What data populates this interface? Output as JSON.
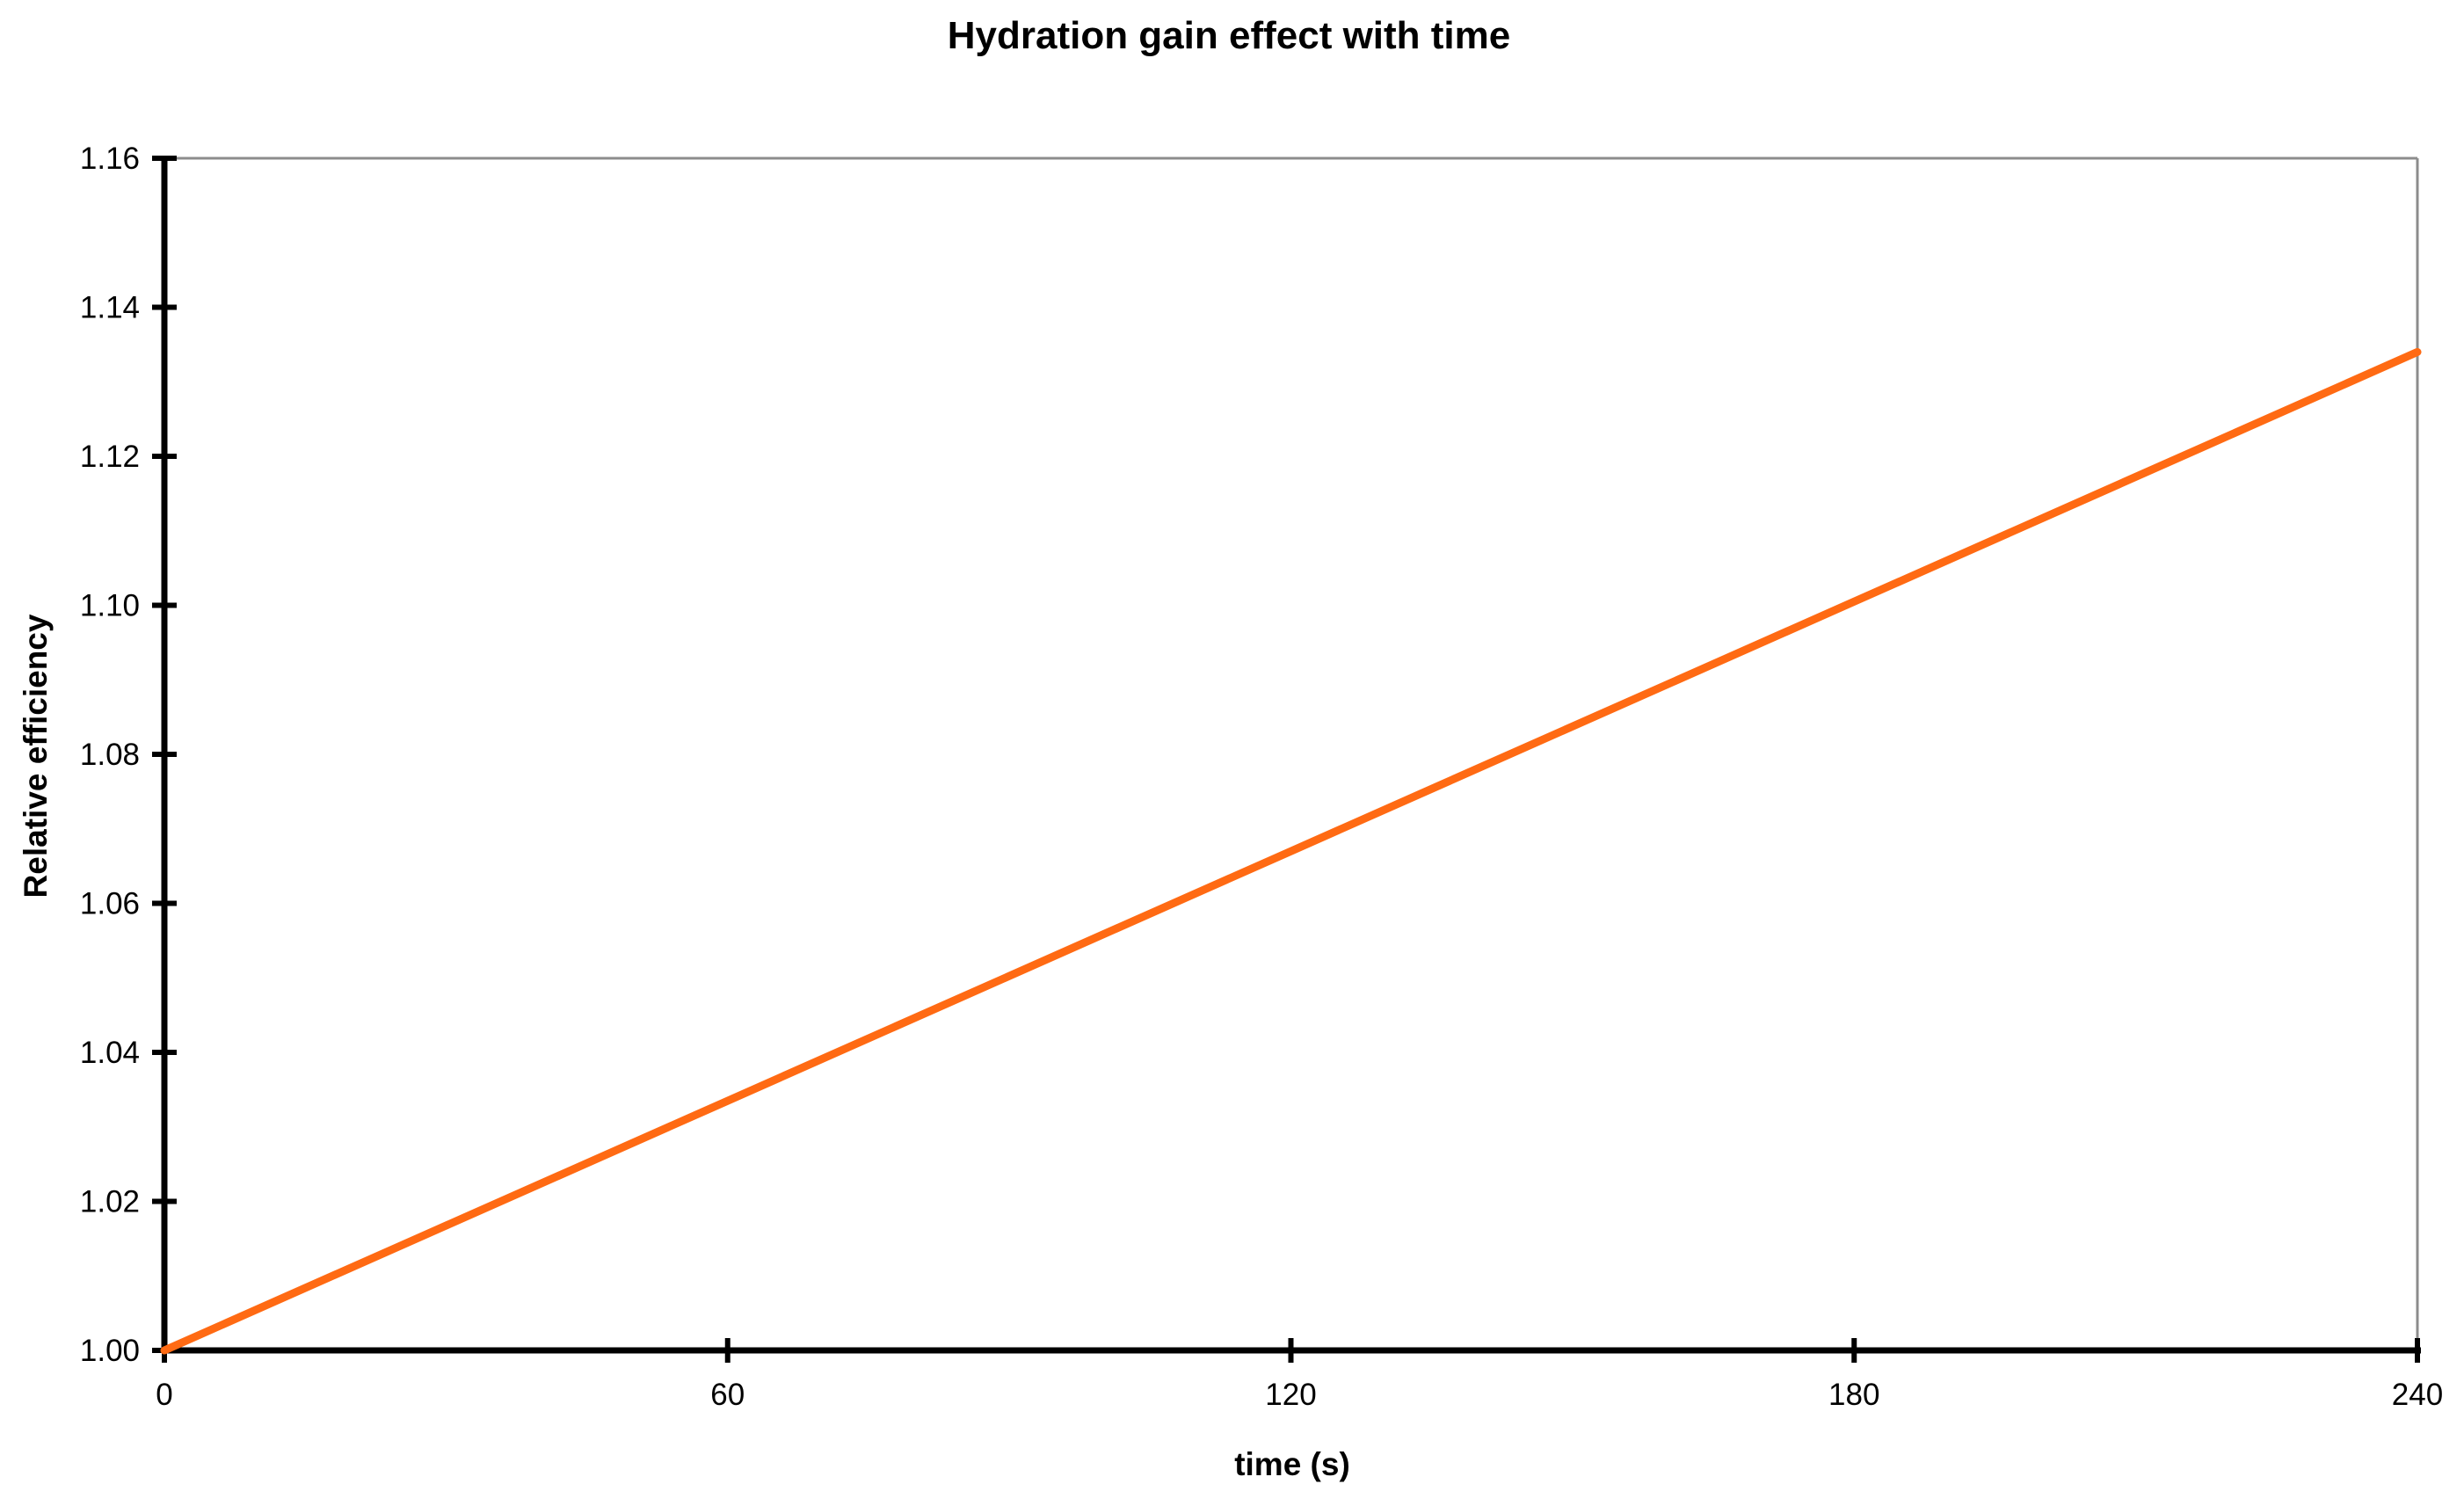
{
  "chart_data": {
    "type": "line",
    "title": "Hydration gain effect with time",
    "xlabel": "time (s)",
    "ylabel": "Relative efficiency",
    "xlim": [
      0,
      240
    ],
    "ylim": [
      1.0,
      1.16
    ],
    "x_ticks": [
      "0",
      "60",
      "120",
      "180",
      "240"
    ],
    "y_ticks": [
      "1.00",
      "1.02",
      "1.04",
      "1.06",
      "1.08",
      "1.10",
      "1.12",
      "1.14",
      "1.16"
    ],
    "grid": false,
    "legend": "none",
    "series": [
      {
        "color": "#ff6a13",
        "x": [
          0,
          60,
          120,
          180,
          240
        ],
        "y": [
          1.0,
          1.0335,
          1.067,
          1.1005,
          1.134
        ]
      }
    ]
  }
}
